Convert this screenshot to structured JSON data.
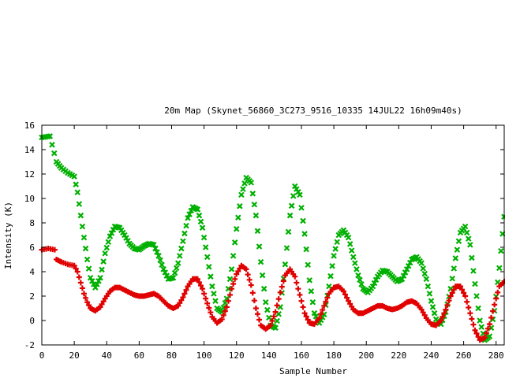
{
  "chart_data": {
    "type": "scatter",
    "title": "20m Map (Skynet_56860_3C273_9516_10335 14JUL22 16h09m40s)",
    "xlabel": "Sample Number",
    "ylabel": "Intensity (K)",
    "xlim": [
      0,
      285
    ],
    "ylim": [
      -2,
      16
    ],
    "xticks": [
      0,
      20,
      40,
      60,
      80,
      100,
      120,
      140,
      160,
      180,
      200,
      220,
      240,
      260,
      280
    ],
    "yticks": [
      -2,
      0,
      2,
      4,
      6,
      8,
      10,
      12,
      14,
      16
    ],
    "grid": false,
    "legend": "none",
    "series": [
      {
        "color": "#00b000",
        "marker": "x",
        "x": [
          0,
          5,
          9,
          12,
          16,
          20,
          22,
          24,
          26,
          28,
          30,
          33,
          36,
          39,
          42,
          45,
          48,
          51,
          54,
          57,
          60,
          63,
          66,
          69,
          72,
          75,
          78,
          81,
          84,
          87,
          90,
          93,
          96,
          99,
          102,
          105,
          108,
          111,
          114,
          117,
          120,
          123,
          126,
          129,
          132,
          135,
          138,
          141,
          144,
          147,
          150,
          153,
          156,
          159,
          162,
          165,
          168,
          171,
          174,
          177,
          180,
          183,
          186,
          189,
          192,
          195,
          198,
          201,
          204,
          207,
          210,
          213,
          216,
          219,
          222,
          225,
          228,
          231,
          234,
          237,
          240,
          243,
          246,
          249,
          252,
          255,
          258,
          261,
          264,
          267,
          270,
          273,
          276,
          279,
          282,
          285
        ],
        "y": [
          15,
          15.1,
          13,
          12.5,
          12.1,
          11.8,
          10.5,
          8.6,
          6.8,
          5,
          3.5,
          2.7,
          3.5,
          5.5,
          6.9,
          7.7,
          7.6,
          7,
          6.3,
          5.9,
          5.8,
          6.1,
          6.3,
          6.2,
          5.3,
          4.2,
          3.4,
          3.5,
          4.7,
          6.5,
          8.4,
          9.3,
          9.1,
          7.6,
          5.2,
          2.8,
          1,
          0.7,
          1.8,
          4.2,
          7.5,
          10.3,
          11.7,
          11.3,
          8.6,
          4.8,
          1.5,
          -0.4,
          -0.6,
          1.1,
          4.6,
          8.6,
          11,
          10.3,
          7.1,
          3.3,
          0.6,
          -0.2,
          0.5,
          2.8,
          5.3,
          7,
          7.4,
          6.8,
          5.2,
          3.7,
          2.6,
          2.3,
          2.8,
          3.6,
          4.1,
          4,
          3.6,
          3.2,
          3.4,
          4.2,
          5,
          5.2,
          4.7,
          3.4,
          1.6,
          0.1,
          -0.3,
          0.7,
          2.6,
          5.1,
          7.2,
          7.7,
          6.2,
          3,
          0,
          -1.6,
          -1.3,
          0.8,
          4.3,
          8.5
        ]
      },
      {
        "color": "#e00000",
        "marker": "+",
        "x": [
          0,
          4,
          8,
          9,
          12,
          16,
          20,
          22,
          24,
          26,
          28,
          30,
          33,
          36,
          39,
          42,
          45,
          48,
          51,
          54,
          57,
          60,
          63,
          66,
          69,
          72,
          75,
          78,
          81,
          84,
          87,
          90,
          93,
          96,
          99,
          102,
          105,
          108,
          111,
          114,
          117,
          120,
          123,
          126,
          129,
          132,
          135,
          138,
          141,
          144,
          147,
          150,
          153,
          156,
          159,
          162,
          165,
          168,
          171,
          174,
          177,
          180,
          183,
          186,
          189,
          192,
          195,
          198,
          201,
          204,
          207,
          210,
          213,
          216,
          219,
          222,
          225,
          228,
          231,
          234,
          237,
          240,
          243,
          246,
          249,
          252,
          255,
          258,
          261,
          264,
          267,
          270,
          273,
          276,
          279,
          282,
          285
        ],
        "y": [
          5.8,
          5.9,
          5.8,
          5,
          4.8,
          4.6,
          4.5,
          4,
          3.1,
          2.2,
          1.5,
          1,
          0.8,
          1.1,
          1.8,
          2.4,
          2.7,
          2.7,
          2.5,
          2.3,
          2.1,
          2,
          2,
          2.1,
          2.2,
          2,
          1.6,
          1.2,
          1,
          1.2,
          1.9,
          2.8,
          3.4,
          3.4,
          2.6,
          1.4,
          0.3,
          -0.2,
          0.1,
          1.1,
          2.6,
          3.8,
          4.5,
          4.2,
          2.9,
          1,
          -0.4,
          -0.7,
          -0.4,
          0.7,
          2.3,
          3.7,
          4.2,
          3.6,
          2.1,
          0.6,
          -0.2,
          -0.3,
          0.2,
          1.2,
          2.2,
          2.7,
          2.8,
          2.4,
          1.6,
          0.9,
          0.6,
          0.6,
          0.8,
          1,
          1.2,
          1.2,
          1,
          0.9,
          1,
          1.2,
          1.5,
          1.6,
          1.4,
          0.9,
          0.2,
          -0.3,
          -0.4,
          0,
          0.9,
          2,
          2.8,
          2.8,
          2,
          0.6,
          -0.8,
          -1.6,
          -1.4,
          -0.3,
          1.3,
          2.8,
          3.2
        ]
      }
    ]
  }
}
